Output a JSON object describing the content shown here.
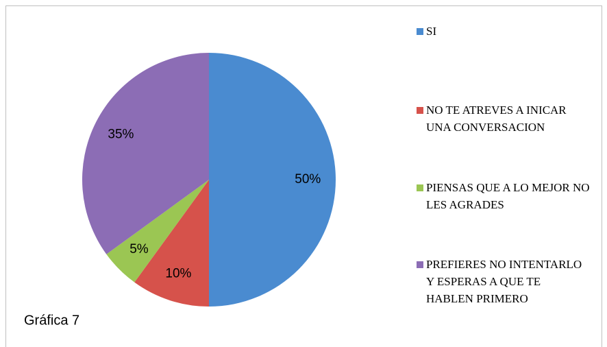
{
  "chart_data": {
    "type": "pie",
    "categories": [
      "SI",
      "NO TE ATREVES A INICAR UNA CONVERSACION",
      "PIENSAS QUE A LO MEJOR NO LES AGRADES",
      "PREFIERES NO INTENTARLO Y ESPERAS A QUE TE HABLEN PRIMERO"
    ],
    "values": [
      50,
      10,
      5,
      35
    ],
    "value_labels": [
      "50%",
      "10%",
      "5%",
      "35%"
    ],
    "colors": [
      "#4a8bd0",
      "#d6524b",
      "#9bc653",
      "#8c6db5"
    ],
    "annotation": "Gráfica 7",
    "legend": "right"
  }
}
